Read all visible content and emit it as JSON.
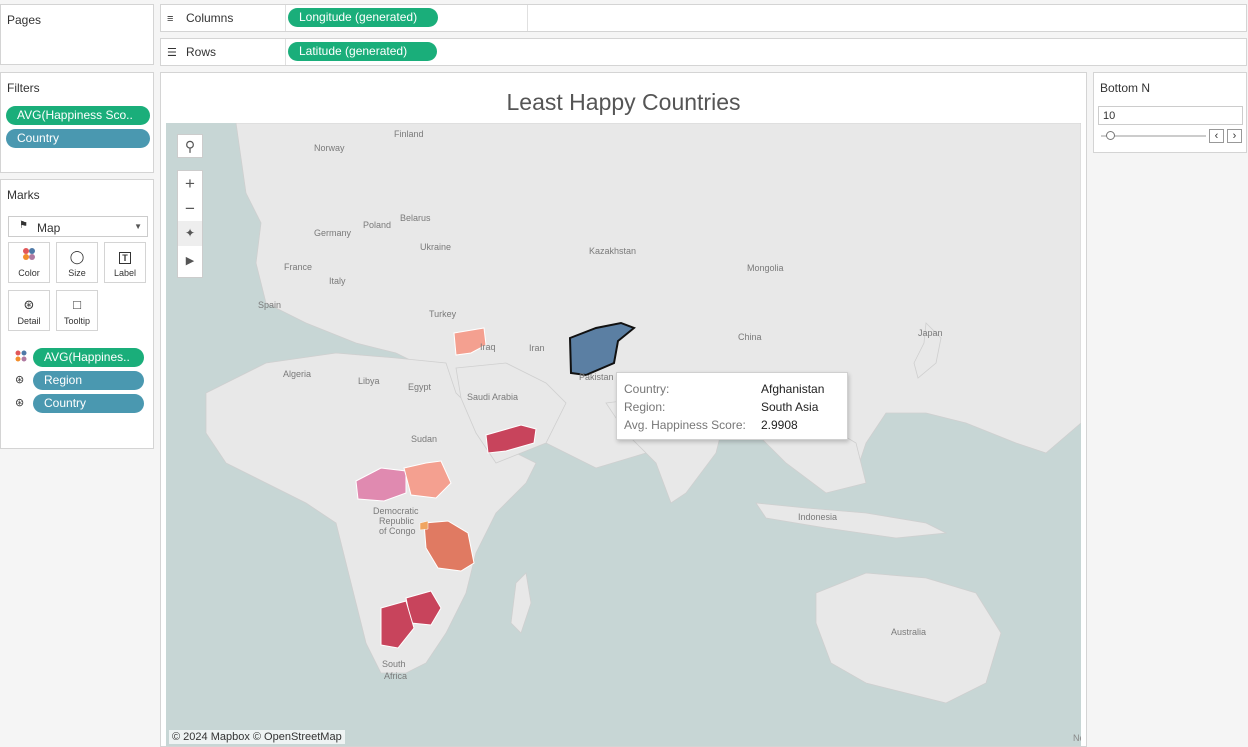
{
  "shelves": {
    "pages_title": "Pages",
    "columns_label": "Columns",
    "columns_pill": "Longitude (generated)",
    "rows_label": "Rows",
    "rows_pill": "Latitude (generated)"
  },
  "filters": {
    "title": "Filters",
    "items": [
      "AVG(Happiness Sco..",
      "Country"
    ]
  },
  "marks": {
    "title": "Marks",
    "type": "Map",
    "buttons": [
      "Color",
      "Size",
      "Label",
      "Detail",
      "Tooltip"
    ],
    "fields": [
      "AVG(Happines..",
      "Region",
      "Country"
    ]
  },
  "viz": {
    "title": "Least Happy Countries",
    "attribution": "© 2024 Mapbox © OpenStreetMap",
    "corner_text": "New"
  },
  "map_labels": [
    "Finland",
    "Norway",
    "Belarus",
    "Poland",
    "Germany",
    "Ukraine",
    "France",
    "Kazakhstan",
    "Mongolia",
    "Italy",
    "Spain",
    "Turkey",
    "Iraq",
    "Iran",
    "China",
    "Japan",
    "Pakistan",
    "Algeria",
    "Libya",
    "Egypt",
    "Saudi Arabia",
    "Sudan",
    "Democratic",
    "Republic",
    "of Congo",
    "Indonesia",
    "Australia",
    "South",
    "Africa"
  ],
  "tooltip": {
    "rows": [
      {
        "key": "Country:",
        "value": "Afghanistan"
      },
      {
        "key": "Region:",
        "value": "South Asia"
      },
      {
        "key": "Avg. Happiness Score:",
        "value": "2.9908"
      }
    ]
  },
  "bottom_n": {
    "title": "Bottom N",
    "value": "10",
    "slider_position": 0
  },
  "colors": {
    "highlighted": "#5b7fa3",
    "low_score": "#c8445c",
    "mid_score": "#e07a62",
    "high_score": "#f4a090",
    "pink": "#e08ab0",
    "ocean": "#c7d6d5",
    "land": "#e8e8e8"
  }
}
